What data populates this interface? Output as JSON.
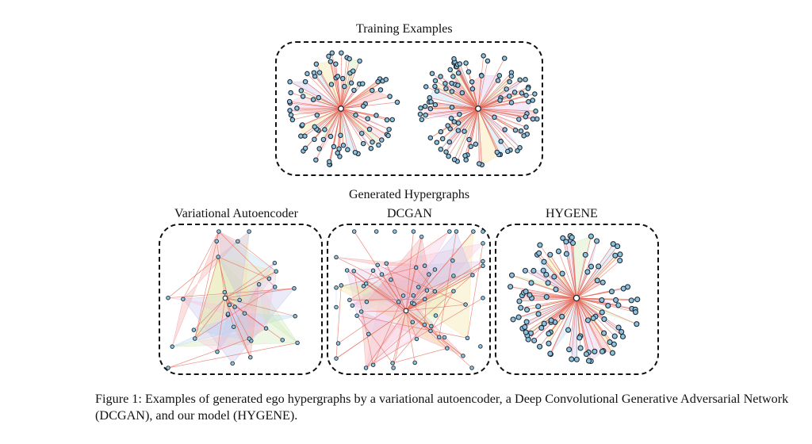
{
  "figure": {
    "top_title": "Training Examples",
    "middle_title": "Generated Hypergraphs",
    "panels": {
      "vae": "Variational Autoencoder",
      "dcgan": "DCGAN",
      "hygene": "HYGENE"
    },
    "caption": "Figure 1: Examples of generated ego hypergraphs by a variational autoencoder, a Deep Convolutional Generative Adversarial Network (DCGAN), and our model (HYGENE).",
    "colors": {
      "node_fill": "#8fc3e0",
      "node_stroke": "#1e2a33",
      "edge": "#e66a5a",
      "hyperedge_palette": [
        "#f4a6a6",
        "#b9d8f2",
        "#cde8b4",
        "#e3c4ec",
        "#f7e3a1",
        "#c7c2ee",
        "#f5c6d9"
      ]
    }
  }
}
